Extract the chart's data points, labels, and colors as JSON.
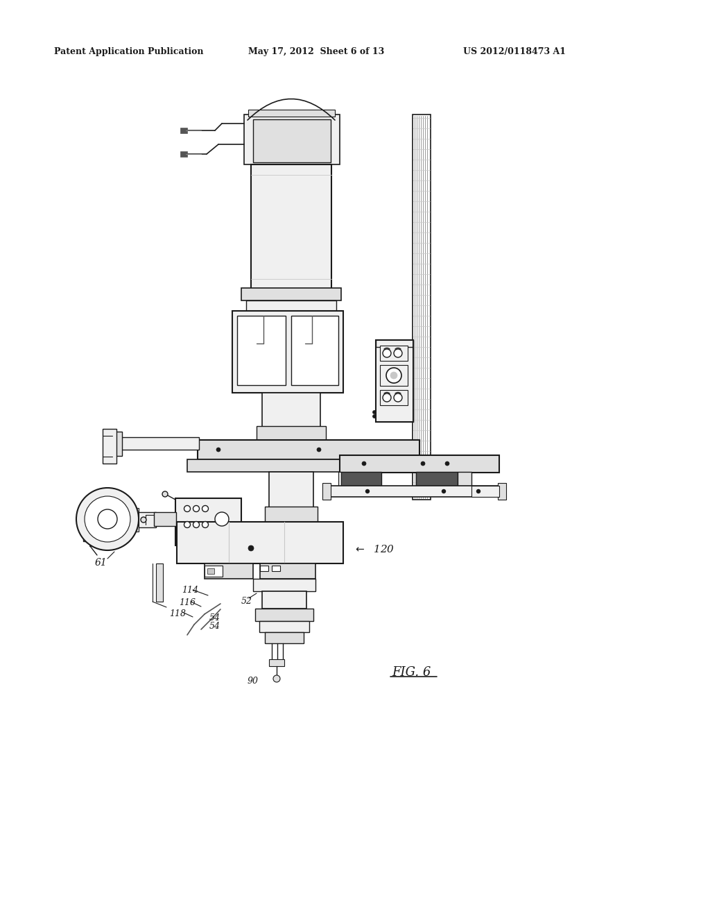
{
  "header_left": "Patent Application Publication",
  "header_mid": "May 17, 2012  Sheet 6 of 13",
  "header_right": "US 2012/0118473 A1",
  "bg_color": "#ffffff",
  "line_color": "#1a1a1a",
  "gray1": "#c8c8c8",
  "gray2": "#e0e0e0",
  "gray3": "#f0f0f0",
  "gray_dark": "#555555",
  "gray_mid": "#888888"
}
